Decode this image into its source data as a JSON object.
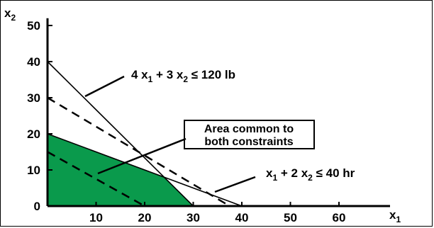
{
  "chart_data": {
    "type": "line",
    "xlabel": "x1",
    "ylabel": "x2",
    "xlim": [
      0,
      70
    ],
    "ylim": [
      -2,
      52
    ],
    "x_ticks": [
      10,
      20,
      30,
      40,
      50,
      60
    ],
    "y_ticks": [
      0,
      10,
      20,
      30,
      40,
      50
    ],
    "grid": false,
    "series": [
      {
        "name": "4 x1 + 3 x2 ≤ 120 lb",
        "style": "solid",
        "x": [
          0,
          30
        ],
        "y": [
          40,
          0
        ]
      },
      {
        "name": "x1 + 2 x2 ≤ 40 hr",
        "style": "solid",
        "x": [
          0,
          40
        ],
        "y": [
          20,
          0
        ]
      },
      {
        "style": "dashed",
        "x": [
          0,
          37.5
        ],
        "y": [
          30,
          0
        ]
      },
      {
        "style": "dashed",
        "x": [
          0,
          20
        ],
        "y": [
          15,
          0
        ]
      }
    ],
    "feasible_region": {
      "color": "#0a9a4c",
      "vertices": [
        [
          0,
          0
        ],
        [
          0,
          20
        ],
        [
          24,
          8
        ],
        [
          30,
          0
        ]
      ]
    },
    "annotations": [
      {
        "text_lines": [
          "Area common to",
          "both constraints"
        ],
        "points_to": [
          5,
          6
        ],
        "boxed": true
      }
    ],
    "labels": {
      "constraint1": {
        "a": "4 x",
        "b": " + 3 x",
        "c": " ≤ 120 lb"
      },
      "constraint2": {
        "a": "x",
        "b": " + 2 x",
        "c": " ≤ 40 hr"
      },
      "sub1": "1",
      "sub2": "2",
      "xlabel_main": "x",
      "ylabel_main": "x"
    }
  }
}
